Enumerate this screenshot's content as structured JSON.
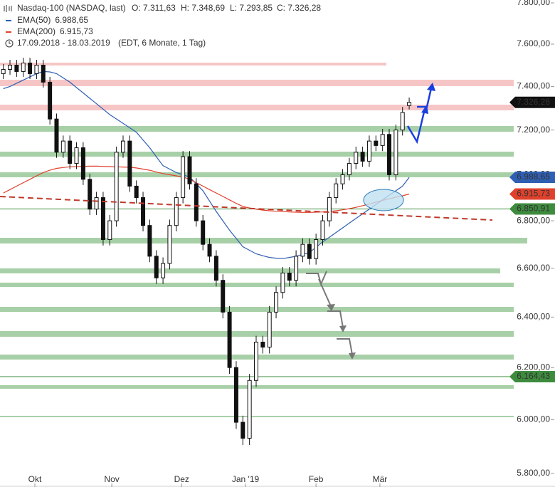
{
  "chart_data": {
    "type": "candlestick",
    "title": "Nasdaq-100 (NASDAQ, last)",
    "ohlc_texts": [
      "O: 7.311,63",
      "H: 7.348,69",
      "L: 7.293,85",
      "C: 7.326,28"
    ],
    "date_range": "17.09.2018 - 18.03.2019",
    "period": "(EDT, 6 Monate, 1 Tag)",
    "log_scale": true,
    "ylim": [
      5800,
      7800
    ],
    "yticks": [
      {
        "value": 5800,
        "label": "5.800,00"
      },
      {
        "value": 6000,
        "label": "6.000,00"
      },
      {
        "value": 6200,
        "label": "6.200,00"
      },
      {
        "value": 6400,
        "label": "6.400,00"
      },
      {
        "value": 6600,
        "label": "6.600,00"
      },
      {
        "value": 6800,
        "label": "6.800,00"
      },
      {
        "value": 7000,
        "label": "7.000,00"
      },
      {
        "value": 7200,
        "label": "7.200,00"
      },
      {
        "value": 7400,
        "label": "7.400,00"
      },
      {
        "value": 7600,
        "label": "7.600,00"
      },
      {
        "value": 7800,
        "label": "7.800,00"
      }
    ],
    "xlim": [
      -0.5,
      76.5
    ],
    "xticks": [
      {
        "value": 4.74,
        "label": "Okt"
      },
      {
        "value": 16.3,
        "label": "Nov"
      },
      {
        "value": 26.8,
        "label": "Dez"
      },
      {
        "value": 36.4,
        "label": "Jan '19"
      },
      {
        "value": 47,
        "label": "Feb"
      },
      {
        "value": 56.6,
        "label": "Mär"
      }
    ],
    "up_color": "#ffffff",
    "down_color": "#111111",
    "candle_edge": "#111111",
    "open": [
      7460,
      7480,
      7500,
      7470,
      7510,
      7460,
      7500,
      7420,
      7250,
      7100,
      7150,
      7050,
      7120,
      6980,
      6850,
      6900,
      6720,
      6800,
      7100,
      7150,
      6950,
      6900,
      6780,
      6650,
      6560,
      6620,
      6780,
      6900,
      7080,
      6960,
      6800,
      6700,
      6650,
      6550,
      6420,
      6200,
      5990,
      5930,
      6150,
      6300,
      6280,
      6420,
      6500,
      6580,
      6550,
      6650,
      6700,
      6640,
      6720,
      6800,
      6900,
      6960,
      7000,
      7050,
      7100,
      7060,
      7150,
      7130,
      7180,
      7000,
      7200,
      7311.63
    ],
    "high": [
      7505,
      7525,
      7525,
      7535,
      7535,
      7525,
      7525,
      7445,
      7275,
      7175,
      7175,
      7145,
      7145,
      7005,
      6925,
      6925,
      6825,
      7125,
      7175,
      7175,
      6975,
      6925,
      6805,
      6675,
      6645,
      6805,
      6925,
      7105,
      7105,
      6985,
      6825,
      6725,
      6675,
      6575,
      6445,
      6225,
      6015,
      6175,
      6325,
      6325,
      6445,
      6525,
      6605,
      6605,
      6675,
      6725,
      6725,
      6745,
      6825,
      6925,
      6985,
      7025,
      7075,
      7125,
      7125,
      7175,
      7175,
      7205,
      7205,
      7225,
      7305,
      7348.69
    ],
    "low": [
      7435,
      7455,
      7445,
      7445,
      7435,
      7435,
      7395,
      7225,
      7075,
      7075,
      7025,
      7025,
      6955,
      6825,
      6825,
      6695,
      6695,
      6775,
      7075,
      6925,
      6875,
      6755,
      6625,
      6535,
      6535,
      6595,
      6755,
      6875,
      6935,
      6775,
      6675,
      6625,
      6525,
      6395,
      6175,
      5965,
      5905,
      5905,
      6125,
      6255,
      6255,
      6395,
      6475,
      6525,
      6525,
      6625,
      6615,
      6615,
      6695,
      6775,
      6875,
      6935,
      6975,
      7025,
      7035,
      7035,
      7105,
      7105,
      6975,
      6975,
      7175,
      7293.85
    ],
    "close": [
      7480,
      7500,
      7470,
      7510,
      7460,
      7500,
      7420,
      7250,
      7100,
      7150,
      7050,
      7120,
      6980,
      6850,
      6900,
      6720,
      6800,
      7100,
      7150,
      6950,
      6900,
      6780,
      6650,
      6560,
      6620,
      6780,
      6900,
      7080,
      6960,
      6800,
      6700,
      6650,
      6550,
      6420,
      6200,
      5990,
      5930,
      6150,
      6300,
      6280,
      6420,
      6500,
      6580,
      6550,
      6650,
      6700,
      6640,
      6720,
      6800,
      6900,
      6960,
      7000,
      7050,
      7100,
      7060,
      7150,
      7130,
      7180,
      7000,
      7200,
      7280,
      7326.28
    ],
    "lines": [
      {
        "name": "EMA(50)",
        "color": "#2f5fb3",
        "last_label": "6.988,65",
        "values": [
          7390,
          7400,
          7415,
          7430,
          7445,
          7460,
          7470,
          7468,
          7460,
          7440,
          7420,
          7395,
          7370,
          7345,
          7320,
          7295,
          7270,
          7250,
          7230,
          7210,
          7190,
          7155,
          7120,
          7080,
          7040,
          7025,
          7010,
          7000,
          6990,
          6960,
          6930,
          6885,
          6840,
          6800,
          6760,
          6725,
          6690,
          6675,
          6660,
          6652,
          6645,
          6642,
          6640,
          6645,
          6650,
          6658,
          6665,
          6688,
          6710,
          6730,
          6750,
          6770,
          6790,
          6810,
          6830,
          6850,
          6870,
          6890,
          6910,
          6930,
          6950,
          6988.65
        ]
      },
      {
        "name": "EMA(200)",
        "color": "#e0412c",
        "last_label": "6.915,73",
        "values": [
          6920,
          6935,
          6950,
          6965,
          6980,
          6995,
          7010,
          7020,
          7028,
          7032,
          7035,
          7036,
          7037,
          7038,
          7038,
          7037,
          7036,
          7035,
          7034,
          7033,
          7030,
          7025,
          7020,
          7012,
          7005,
          7000,
          6995,
          6990,
          6980,
          6965,
          6950,
          6935,
          6920,
          6905,
          6890,
          6875,
          6862,
          6855,
          6850,
          6846,
          6843,
          6841,
          6840,
          6838,
          6837,
          6836,
          6836,
          6837,
          6838,
          6840,
          6843,
          6847,
          6852,
          6858,
          6865,
          6872,
          6880,
          6888,
          6895,
          6902,
          6908,
          6915.73
        ]
      }
    ],
    "price_markers": [
      {
        "value": 7326.28,
        "label": "7.326,28",
        "color": "#111111",
        "line": false
      },
      {
        "value": 6988.65,
        "label": "6.988,65",
        "color": "#2f5fb3",
        "line": false
      },
      {
        "value": 6915.73,
        "label": "6.915,73",
        "color": "#e0412c",
        "line": false
      },
      {
        "value": 6850.91,
        "label": "6.850,91",
        "color": "#3d8b3d",
        "line": true
      },
      {
        "value": 6164.43,
        "label": "6.164,43",
        "color": "#3d8b3d",
        "line": true
      }
    ]
  }
}
